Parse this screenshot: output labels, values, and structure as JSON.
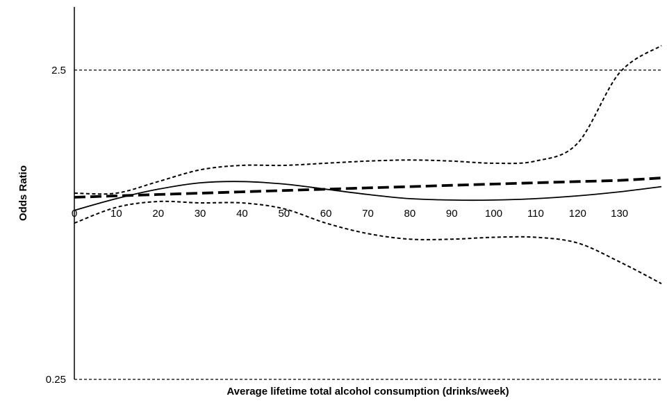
{
  "chart_data": {
    "type": "line",
    "title": "",
    "xlabel": "Average lifetime total alcohol consumption (drinks/week)",
    "ylabel": "Odds Ratio",
    "y_scale": "log",
    "xlim": [
      0,
      140
    ],
    "ylim": [
      0.25,
      4.0
    ],
    "x_ticks": [
      0,
      10,
      20,
      30,
      40,
      50,
      60,
      70,
      80,
      90,
      100,
      110,
      120,
      130
    ],
    "x_tick_labels": [
      "0",
      "10",
      "20",
      "30",
      "40",
      "50",
      "60",
      "70",
      "80",
      "90",
      "100",
      "110",
      "120",
      "130"
    ],
    "y_ticks": [
      0.25,
      2.5
    ],
    "y_tick_labels": [
      "0.25",
      "2.5"
    ],
    "reference_lines_y": [
      0.25,
      2.5
    ],
    "grid": false,
    "legend": "none",
    "series": [
      {
        "style": "solid",
        "x": [
          0,
          10,
          20,
          30,
          40,
          50,
          60,
          70,
          80,
          90,
          100,
          110,
          120,
          130,
          140
        ],
        "y": [
          0.88,
          0.96,
          1.03,
          1.08,
          1.09,
          1.07,
          1.03,
          0.99,
          0.96,
          0.95,
          0.95,
          0.96,
          0.98,
          1.01,
          1.05
        ]
      },
      {
        "style": "long-dash",
        "x": [
          0,
          10,
          20,
          30,
          40,
          50,
          60,
          70,
          80,
          90,
          100,
          110,
          120,
          130,
          140
        ],
        "y": [
          0.97,
          0.98,
          0.99,
          1.0,
          1.01,
          1.02,
          1.03,
          1.04,
          1.05,
          1.06,
          1.07,
          1.08,
          1.09,
          1.1,
          1.12
        ]
      },
      {
        "style": "dotted",
        "x": [
          0,
          10,
          20,
          30,
          40,
          50,
          60,
          70,
          80,
          90,
          100,
          110,
          120,
          130,
          140
        ],
        "y": [
          1.0,
          1.0,
          1.09,
          1.19,
          1.23,
          1.23,
          1.25,
          1.27,
          1.28,
          1.27,
          1.25,
          1.27,
          1.45,
          2.45,
          3.0
        ]
      },
      {
        "style": "dotted",
        "x": [
          0,
          10,
          20,
          30,
          40,
          50,
          60,
          70,
          80,
          90,
          100,
          110,
          120,
          130,
          140
        ],
        "y": [
          0.8,
          0.9,
          0.94,
          0.93,
          0.93,
          0.89,
          0.8,
          0.74,
          0.71,
          0.71,
          0.72,
          0.72,
          0.69,
          0.6,
          0.51
        ]
      }
    ]
  }
}
